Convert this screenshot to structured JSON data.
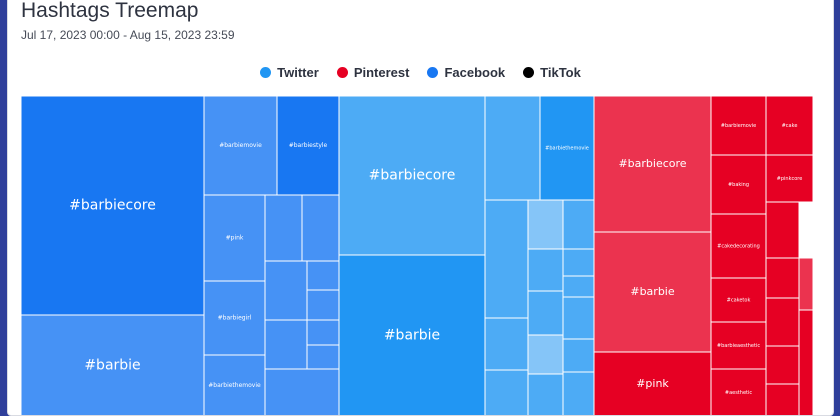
{
  "title": "Hashtags Treemap",
  "date_range": "Jul 17, 2023 00:00 - Aug 15, 2023 23:59",
  "legend": [
    {
      "label": "Twitter",
      "color": "#2196f3"
    },
    {
      "label": "Pinterest",
      "color": "#e60023"
    },
    {
      "label": "Facebook",
      "color": "#1877f2"
    },
    {
      "label": "TikTok",
      "color": "#000000"
    }
  ],
  "chart_data": {
    "type": "treemap",
    "title": "Hashtags Treemap",
    "groups": [
      {
        "name": "Facebook",
        "color": "#1877f2",
        "tiles": [
          {
            "label": "#barbiecore",
            "shade": 0
          },
          {
            "label": "#barbie",
            "shade": 1
          },
          {
            "label": "#barbiemovie",
            "shade": 1
          },
          {
            "label": "#barbiestyle",
            "shade": 0
          },
          {
            "label": "#pink",
            "shade": 1
          },
          {
            "label": "#barbiegirl",
            "shade": 1
          },
          {
            "label": "#barbiethemovie",
            "shade": 1
          },
          {
            "label": "",
            "shade": 1
          },
          {
            "label": "",
            "shade": 1
          },
          {
            "label": "",
            "shade": 1
          },
          {
            "label": "",
            "shade": 1
          },
          {
            "label": "",
            "shade": 1
          },
          {
            "label": "",
            "shade": 1
          },
          {
            "label": "",
            "shade": 1
          },
          {
            "label": "",
            "shade": 1
          },
          {
            "label": "",
            "shade": 1
          }
        ]
      },
      {
        "name": "Twitter",
        "color": "#2196f3",
        "tiles": [
          {
            "label": "#barbiecore",
            "shade": 1
          },
          {
            "label": "#barbie",
            "shade": 0
          },
          {
            "label": "",
            "shade": 1
          },
          {
            "label": "#barbiethemovie",
            "shade": 0
          },
          {
            "label": "",
            "shade": 1
          },
          {
            "label": "",
            "shade": 1
          },
          {
            "label": "",
            "shade": 1
          },
          {
            "label": "",
            "shade": 2
          },
          {
            "label": "",
            "shade": 1
          },
          {
            "label": "",
            "shade": 1
          },
          {
            "label": "",
            "shade": 1
          },
          {
            "label": "",
            "shade": 1
          },
          {
            "label": "",
            "shade": 2
          },
          {
            "label": "",
            "shade": 1
          },
          {
            "label": "",
            "shade": 1
          },
          {
            "label": "",
            "shade": 1
          },
          {
            "label": "",
            "shade": 1
          },
          {
            "label": "",
            "shade": 1
          }
        ]
      },
      {
        "name": "Pinterest",
        "color": "#e60023",
        "tiles": [
          {
            "label": "#barbiecore",
            "shade": 1
          },
          {
            "label": "#barbie",
            "shade": 1
          },
          {
            "label": "#pink",
            "shade": 0
          },
          {
            "label": "#barbiemovie",
            "shade": 0
          },
          {
            "label": "#cake",
            "shade": 0
          },
          {
            "label": "#baking",
            "shade": 0
          },
          {
            "label": "#pinkcore",
            "shade": 0
          },
          {
            "label": "#cakedecorating",
            "shade": 0
          },
          {
            "label": "",
            "shade": 0
          },
          {
            "label": "#caketok",
            "shade": 0
          },
          {
            "label": "",
            "shade": 0
          },
          {
            "label": "",
            "shade": 1
          },
          {
            "label": "#barbieaesthetic",
            "shade": 0
          },
          {
            "label": "",
            "shade": 0
          },
          {
            "label": "#aesthetic",
            "shade": 0
          },
          {
            "label": "",
            "shade": 0
          },
          {
            "label": "",
            "shade": 0
          },
          {
            "label": "",
            "shade": 0
          }
        ]
      }
    ]
  }
}
